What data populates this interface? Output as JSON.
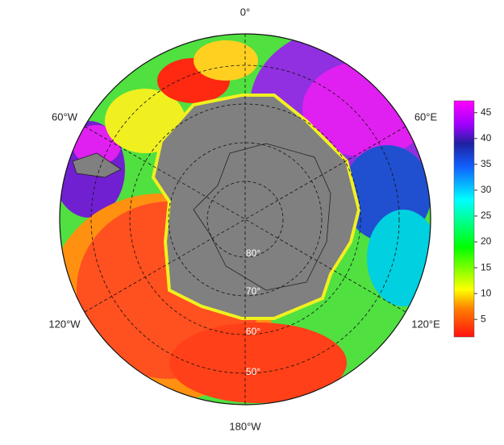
{
  "map": {
    "longitude_labels": [
      "0°",
      "60°E",
      "120°E",
      "180°W",
      "120°W",
      "60°W"
    ],
    "latitude_labels": [
      "80°",
      "70°",
      "60°",
      "50°"
    ]
  },
  "colorbar": {
    "lim": [
      1.6,
      47.3
    ],
    "ticks": [
      5,
      10,
      15,
      20,
      25,
      30,
      35,
      40,
      45
    ]
  }
}
